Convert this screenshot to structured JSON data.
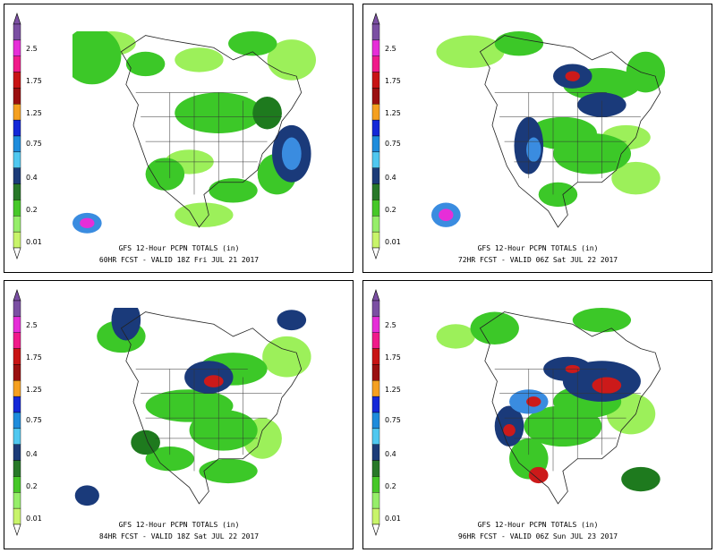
{
  "legend": {
    "labels": [
      "2.5",
      "1.75",
      "1.25",
      "0.75",
      "0.4",
      "0.2",
      "0.01"
    ],
    "colors": [
      "#7b4fa3",
      "#e62ed8",
      "#f01a8a",
      "#c81414",
      "#9a1010",
      "#f5a020",
      "#1428d8",
      "#1e8cdc",
      "#50c8f0",
      "#1c3c78",
      "#287828",
      "#46c828",
      "#96ee6a",
      "#c8f46a"
    ]
  },
  "panels": [
    {
      "title": "GFS 12-Hour PCPN TOTALS (in)",
      "subtitle": "60HR FCST   -  VALID  18Z  Fri JUL 21 2017"
    },
    {
      "title": "GFS 12-Hour PCPN TOTALS (in)",
      "subtitle": "72HR FCST   -  VALID  06Z  Sat JUL 22 2017"
    },
    {
      "title": "GFS 12-Hour PCPN TOTALS (in)",
      "subtitle": "84HR FCST   -  VALID  18Z  Sat JUL 22 2017"
    },
    {
      "title": "GFS 12-Hour PCPN TOTALS (in)",
      "subtitle": "96HR FCST   -  VALID  06Z  Sun JUL 23 2017"
    }
  ],
  "map_colors": {
    "light_green": "#9cf05a",
    "green": "#3cc828",
    "dark_green": "#1e7a1e",
    "navy": "#1a3a7a",
    "blue": "#3a8ce0",
    "light_blue": "#78c8f0",
    "red": "#cc1a1a",
    "magenta": "#e62ed8",
    "white": "#ffffff"
  }
}
